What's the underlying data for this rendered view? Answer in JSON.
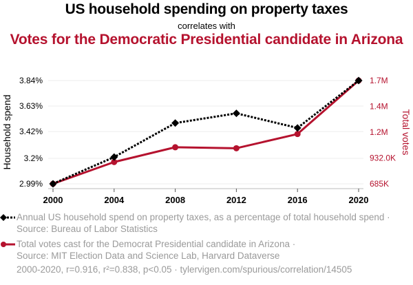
{
  "header": {
    "title": "US household spending on property taxes",
    "connector": "correlates with",
    "subtitle": "Votes for the Democratic Presidential candidate in Arizona"
  },
  "colors": {
    "series1": "#000000",
    "series2": "#b5122e",
    "grid": "#eeeeee",
    "muted_text": "#9a9a9a"
  },
  "chart_data": {
    "type": "line",
    "title": "US household spending on property taxes correlates with Votes for the Democratic Presidential candidate in Arizona",
    "x": [
      2000,
      2004,
      2008,
      2012,
      2016,
      2020
    ],
    "xlabel": "",
    "x_ticks": [
      "2000",
      "2004",
      "2008",
      "2012",
      "2016",
      "2020"
    ],
    "y_left": {
      "label": "Household spend",
      "range": [
        2.99,
        3.84
      ],
      "ticks": [
        "2.99%",
        "3.2%",
        "3.42%",
        "3.63%",
        "3.84%"
      ],
      "tick_values": [
        2.99,
        3.2,
        3.42,
        3.63,
        3.84
      ]
    },
    "y_right": {
      "label": "Total votes",
      "range": [
        685341,
        1672143
      ],
      "ticks": [
        "685K",
        "932.0K",
        "1.2M",
        "1.4M",
        "1.7M"
      ],
      "tick_values": [
        685341,
        932041,
        1178742,
        1425442,
        1672143
      ]
    },
    "grid": true,
    "series": [
      {
        "name": "Annual US household spend on property taxes, as a percentage of total household spend",
        "axis": "left",
        "style": "dotted",
        "marker": "diamond",
        "values": [
          2.99,
          3.21,
          3.49,
          3.57,
          3.45,
          3.84
        ]
      },
      {
        "name": "Total votes cast for the Democrat Presidential candidate in Arizona",
        "axis": "right",
        "style": "solid",
        "marker": "circle",
        "values": [
          685341,
          893524,
          1034707,
          1025232,
          1161167,
          1672143
        ]
      }
    ]
  },
  "legend": {
    "item1": "Annual US household spend on property taxes, as a percentage of total household spend · Source: Bureau of Labor Statistics",
    "item2_line1": "Total votes cast for the Democrat Presidential candidate in Arizona ·",
    "item2_line2": "Source: MIT Election Data and Science Lab, Harvard Dataverse"
  },
  "footer": "2000-2020, r=0.916, r²=0.838, p<0.05 · tylervigen.com/spurious/correlation/14505"
}
